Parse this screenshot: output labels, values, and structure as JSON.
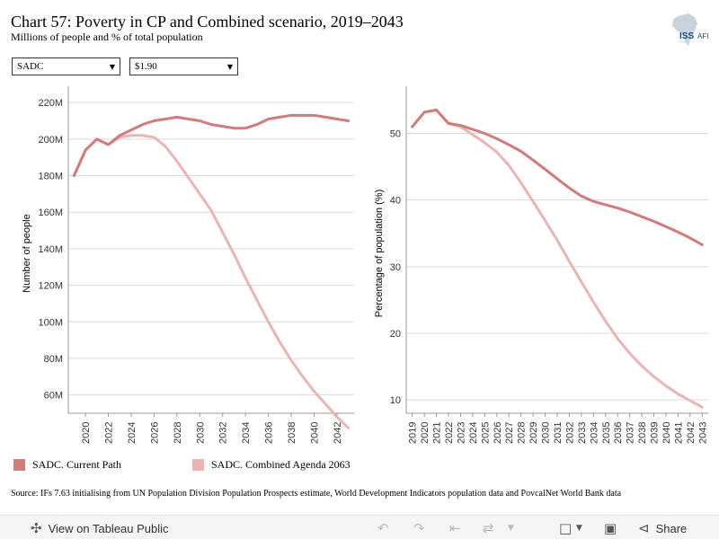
{
  "header": {
    "title": "Chart 57: Poverty in CP and Combined scenario, 2019–2043",
    "subtitle": "Millions of people and % of total population",
    "logo_text": "ISS",
    "logo_suffix": "AFI"
  },
  "filters": {
    "region": "SADC",
    "poverty_line": "$1.90"
  },
  "colors": {
    "current_path": "#d17b7b",
    "combined": "#ebb4b4",
    "grid": "#d9d9d9",
    "axis": "#999999"
  },
  "legend": {
    "current_path": "SADC. Current Path",
    "combined": "SADC. Combined Agenda 2063"
  },
  "source": "Source: IFs 7.63 initialising from UN Population Division Population Prospects estimate, World Development Indicators population data and PovcalNet World Bank data",
  "toolbar": {
    "view_label": "View on Tableau Public",
    "share_label": "Share"
  },
  "chart_data": [
    {
      "type": "line",
      "ylabel": "Number of people",
      "ylim": [
        50,
        225
      ],
      "yticks": [
        60,
        80,
        100,
        120,
        140,
        160,
        180,
        200,
        220
      ],
      "ytick_labels": [
        "60M",
        "80M",
        "100M",
        "120M",
        "140M",
        "160M",
        "180M",
        "200M",
        "220M"
      ],
      "xlim": [
        2018.5,
        2043.5
      ],
      "xticks": [
        2020,
        2022,
        2024,
        2026,
        2028,
        2030,
        2032,
        2034,
        2036,
        2038,
        2040,
        2042
      ],
      "x": [
        2019,
        2020,
        2021,
        2022,
        2023,
        2024,
        2025,
        2026,
        2027,
        2028,
        2029,
        2030,
        2031,
        2032,
        2033,
        2034,
        2035,
        2036,
        2037,
        2038,
        2039,
        2040,
        2041,
        2042,
        2043
      ],
      "series": [
        {
          "name": "SADC. Current Path",
          "values": [
            180,
            194,
            200,
            197,
            202,
            205,
            208,
            210,
            211,
            212,
            211,
            210,
            208,
            207,
            206,
            206,
            208,
            211,
            212,
            213,
            213,
            213,
            212,
            211,
            210
          ]
        },
        {
          "name": "SADC. Combined Agenda 2063",
          "values": [
            180,
            194,
            200,
            197,
            201,
            202,
            202,
            201,
            196,
            188,
            179,
            170,
            161,
            149,
            137,
            124,
            112,
            100,
            89,
            79,
            70,
            62,
            55,
            48,
            42
          ]
        }
      ]
    },
    {
      "type": "line",
      "ylabel": "Percentage of population (%)",
      "ylim": [
        8,
        56
      ],
      "yticks": [
        10,
        20,
        30,
        40,
        50
      ],
      "ytick_labels": [
        "10",
        "20",
        "30",
        "40",
        "50"
      ],
      "xlim": [
        2018.5,
        2043.5
      ],
      "xticks": [
        2019,
        2020,
        2021,
        2022,
        2023,
        2024,
        2025,
        2026,
        2027,
        2028,
        2029,
        2030,
        2031,
        2032,
        2033,
        2034,
        2035,
        2036,
        2037,
        2038,
        2039,
        2040,
        2041,
        2042,
        2043
      ],
      "x": [
        2019,
        2020,
        2021,
        2022,
        2023,
        2024,
        2025,
        2026,
        2027,
        2028,
        2029,
        2030,
        2031,
        2032,
        2033,
        2034,
        2035,
        2036,
        2037,
        2038,
        2039,
        2040,
        2041,
        2042,
        2043
      ],
      "series": [
        {
          "name": "SADC. Current Path",
          "values": [
            51.0,
            53.2,
            53.5,
            51.5,
            51.2,
            50.6,
            50.0,
            49.2,
            48.3,
            47.3,
            46.0,
            44.6,
            43.2,
            41.8,
            40.6,
            39.8,
            39.3,
            38.8,
            38.2,
            37.5,
            36.8,
            36.0,
            35.2,
            34.3,
            33.3
          ]
        },
        {
          "name": "SADC. Combined Agenda 2063",
          "values": [
            51.0,
            53.2,
            53.5,
            51.5,
            51.0,
            49.8,
            48.6,
            47.2,
            45.2,
            42.6,
            39.8,
            36.9,
            34.0,
            30.8,
            27.7,
            24.7,
            21.8,
            19.2,
            17.0,
            15.1,
            13.5,
            12.1,
            10.9,
            9.9,
            8.9
          ]
        }
      ]
    }
  ]
}
